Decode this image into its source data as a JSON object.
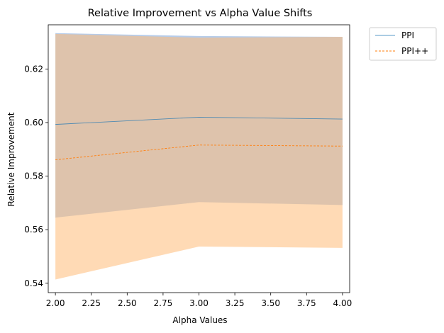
{
  "chart_data": {
    "type": "line",
    "title": "Relative Improvement vs Alpha Value Shifts",
    "xlabel": "Alpha Values",
    "ylabel": "Relative Improvement",
    "xlim": [
      1.95,
      4.05
    ],
    "ylim": [
      0.5365,
      0.6365
    ],
    "xticks": [
      2.0,
      2.25,
      2.5,
      2.75,
      3.0,
      3.25,
      3.5,
      3.75,
      4.0
    ],
    "xtick_labels": [
      "2.00",
      "2.25",
      "2.50",
      "2.75",
      "3.00",
      "3.25",
      "3.50",
      "3.75",
      "4.00"
    ],
    "yticks": [
      0.54,
      0.56,
      0.58,
      0.6,
      0.62
    ],
    "ytick_labels": [
      "0.54",
      "0.56",
      "0.58",
      "0.60",
      "0.62"
    ],
    "x": [
      2.0,
      3.0,
      4.0
    ],
    "series": [
      {
        "name": "PPI",
        "values": [
          0.5993,
          0.602,
          0.6013
        ],
        "lower": [
          0.5645,
          0.5703,
          0.5692
        ],
        "upper": [
          0.6334,
          0.6323,
          0.632
        ],
        "color": "#1f77b4",
        "band_color": "#aec7e8",
        "line_style": "solid"
      },
      {
        "name": "PPI++",
        "values": [
          0.5861,
          0.5916,
          0.5912
        ],
        "lower": [
          0.5414,
          0.5537,
          0.5532
        ],
        "upper": [
          0.6331,
          0.6317,
          0.632
        ],
        "color": "#ff7f0e",
        "band_color": "#ffbb78",
        "line_style": "dashed"
      }
    ],
    "legend": {
      "location": "outside-upper-right",
      "entries": [
        "PPI",
        "PPI++"
      ]
    },
    "grid": false
  }
}
